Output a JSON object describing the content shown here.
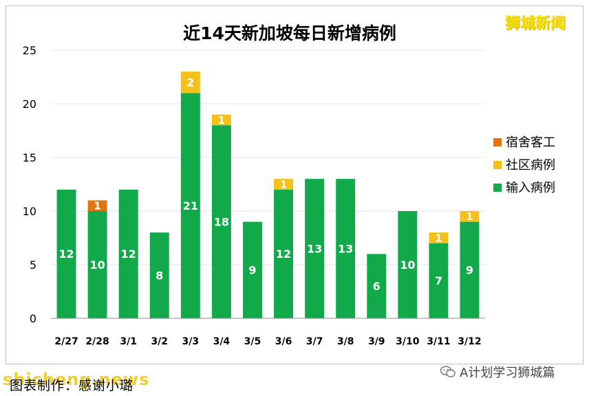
{
  "chart_data": {
    "type": "bar",
    "stacked": true,
    "title": "近14天新加坡每日新增病例",
    "categories": [
      "2/27",
      "2/28",
      "3/1",
      "3/2",
      "3/3",
      "3/4",
      "3/5",
      "3/6",
      "3/7",
      "3/8",
      "3/9",
      "3/10",
      "3/11",
      "3/12"
    ],
    "series": [
      {
        "name": "输入病例",
        "color": "#12a94b",
        "values": [
          12,
          10,
          12,
          8,
          21,
          18,
          9,
          12,
          13,
          13,
          6,
          10,
          7,
          9
        ]
      },
      {
        "name": "社区病例",
        "color": "#f5c118",
        "values": [
          0,
          0,
          0,
          0,
          2,
          1,
          0,
          1,
          0,
          0,
          0,
          0,
          1,
          1
        ]
      },
      {
        "name": "宿舍客工",
        "color": "#e07514",
        "values": [
          0,
          1,
          0,
          0,
          0,
          0,
          0,
          0,
          0,
          0,
          0,
          0,
          0,
          0
        ]
      }
    ],
    "legend_order": [
      "宿舍客工",
      "社区病例",
      "输入病例"
    ],
    "legend_position": "right",
    "ylim": [
      0,
      25
    ],
    "yticks": [
      0,
      5,
      10,
      15,
      20,
      25
    ],
    "grid": true,
    "xlabel": "",
    "ylabel": ""
  },
  "brand_badge": "狮城新闻",
  "credit": "图表制作：感谢小璐",
  "watermark": "shicheng.news",
  "wechat_source": "A计划学习狮城篇"
}
